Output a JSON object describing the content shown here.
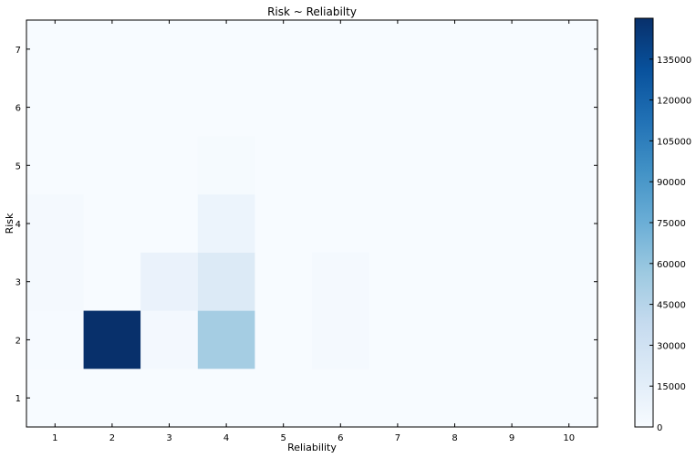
{
  "chart_data": {
    "type": "heatmap",
    "title": "Risk ~ Reliabilty",
    "xlabel": "Reliability",
    "ylabel": "Risk",
    "x": [
      1,
      2,
      3,
      4,
      5,
      6,
      7,
      8,
      9,
      10
    ],
    "y": [
      1,
      2,
      3,
      4,
      5,
      6,
      7
    ],
    "xlim": [
      0.5,
      10.5
    ],
    "ylim": [
      0.5,
      7.5
    ],
    "grid": false,
    "colormap": "Blues",
    "color_range": [
      0,
      150000
    ],
    "colorbar_ticks": [
      0,
      15000,
      30000,
      45000,
      60000,
      75000,
      90000,
      105000,
      120000,
      135000
    ],
    "cells": [
      {
        "x": 1,
        "y": 2,
        "value": 1000
      },
      {
        "x": 1,
        "y": 3,
        "value": 2000
      },
      {
        "x": 1,
        "y": 4,
        "value": 2000
      },
      {
        "x": 2,
        "y": 2,
        "value": 150000
      },
      {
        "x": 3,
        "y": 2,
        "value": 3000
      },
      {
        "x": 3,
        "y": 3,
        "value": 10000
      },
      {
        "x": 4,
        "y": 2,
        "value": 53000
      },
      {
        "x": 4,
        "y": 3,
        "value": 20000
      },
      {
        "x": 4,
        "y": 4,
        "value": 8000
      },
      {
        "x": 4,
        "y": 5,
        "value": 1500
      },
      {
        "x": 6,
        "y": 2,
        "value": 2500
      },
      {
        "x": 6,
        "y": 3,
        "value": 2500
      }
    ]
  }
}
